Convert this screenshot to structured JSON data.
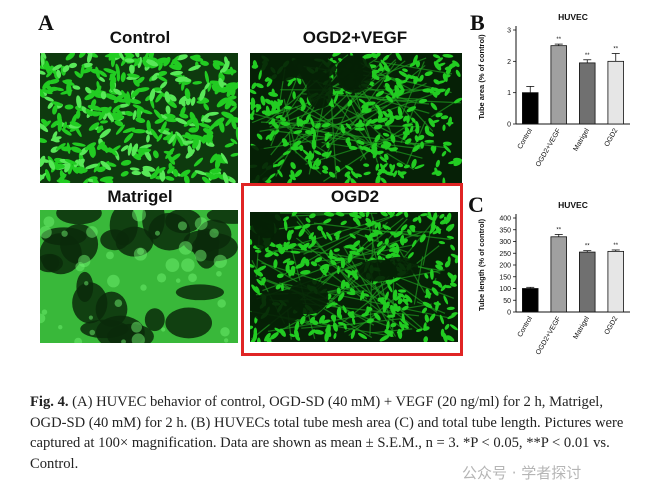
{
  "figure": {
    "panel_letters": [
      "A",
      "B",
      "C"
    ],
    "images": [
      {
        "title": "Control",
        "style": "dense"
      },
      {
        "title": "OGD2+VEGF",
        "style": "network"
      },
      {
        "title": "Matrigel",
        "style": "mesh"
      },
      {
        "title": "OGD2",
        "style": "network"
      }
    ],
    "highlight_color": "#e02424",
    "cell_color": "#22cc22"
  },
  "chart_data": [
    {
      "type": "bar",
      "title": "HUVEC",
      "ylabel": "Tube area (% of control)",
      "categories": [
        "Control",
        "OGD2+VEGF",
        "Matrigel",
        "OGD2"
      ],
      "values": [
        1.0,
        2.5,
        1.95,
        2.0
      ],
      "errors": [
        0.2,
        0.05,
        0.1,
        0.25
      ],
      "significance": [
        "",
        "**",
        "**",
        "**"
      ],
      "ylim": [
        0,
        3
      ],
      "yticks": [
        "0",
        "1",
        "2",
        "3"
      ],
      "bar_colors": [
        "#000000",
        "#a0a0a0",
        "#707070",
        "#e6e6e6"
      ]
    },
    {
      "type": "bar",
      "title": "HUVEC",
      "ylabel": "Tube length (% of control)",
      "categories": [
        "Control",
        "OGD2+VEGF",
        "Matrigel",
        "OGD2"
      ],
      "values": [
        100,
        320,
        255,
        258
      ],
      "errors": [
        5,
        10,
        6,
        6
      ],
      "significance": [
        "",
        "**",
        "**",
        "**"
      ],
      "ylim": [
        0,
        400
      ],
      "yticks": [
        "0",
        "50",
        "100",
        "150",
        "200",
        "250",
        "300",
        "350",
        "400"
      ],
      "bar_colors": [
        "#000000",
        "#a0a0a0",
        "#707070",
        "#e6e6e6"
      ]
    }
  ],
  "caption": {
    "label": "Fig. 4.",
    "text": "(A) HUVEC behavior of control, OGD-SD (40 mM) + VEGF (20 ng/ml) for 2 h, Matrigel, OGD-SD (40 mM) for 2 h. (B) HUVECs total tube mesh area (C) and total tube length. Pictures were captured at 100× magnification. Data are shown as mean ± S.E.M., n = 3. *P < 0.05, **P < 0.01 vs. Control."
  },
  "watermark": "公众号 · 学者探讨"
}
